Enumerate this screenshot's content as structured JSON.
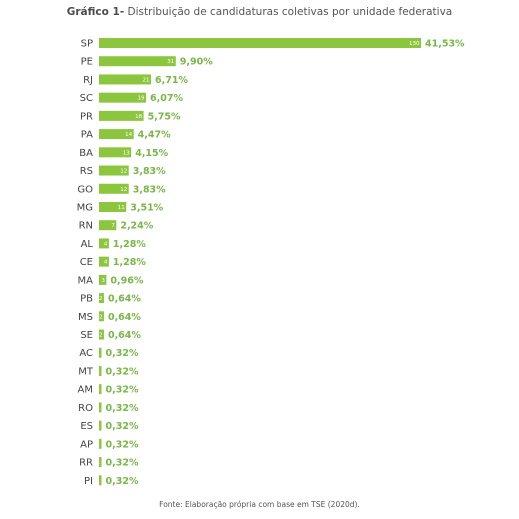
{
  "chart_data": {
    "type": "bar",
    "orientation": "horizontal",
    "title_prefix": "Gráfico 1-",
    "title": "Distribuição de candidaturas coletivas por unidade federativa",
    "source": "Fonte: Elaboração própria com base em TSE (2020d).",
    "bar_color": "#8cc63f",
    "label_color": "#7ab648",
    "categories": [
      "SP",
      "PE",
      "RJ",
      "SC",
      "PR",
      "PA",
      "BA",
      "RS",
      "GO",
      "MG",
      "RN",
      "AL",
      "CE",
      "MA",
      "PB",
      "MS",
      "SE",
      "AC",
      "MT",
      "AM",
      "RO",
      "ES",
      "AP",
      "RR",
      "PI"
    ],
    "values": [
      130,
      31,
      21,
      19,
      18,
      14,
      13,
      12,
      12,
      11,
      7,
      4,
      4,
      3,
      2,
      2,
      2,
      1,
      1,
      1,
      1,
      1,
      1,
      1,
      1
    ],
    "value_labels": [
      "130",
      "31",
      "21",
      "19",
      "18",
      "14",
      "13",
      "12",
      "12",
      "11",
      "7",
      "4",
      "4",
      "3",
      "2",
      "2",
      "2",
      "1",
      "1",
      "1",
      "1",
      "1",
      "1",
      "1",
      "1"
    ],
    "percent_labels": [
      "41,53%",
      "9,90%",
      "6,71%",
      "6,07%",
      "5,75%",
      "4,47%",
      "4,15%",
      "3,83%",
      "3,83%",
      "3,51%",
      "2,24%",
      "1,28%",
      "1,28%",
      "0,96%",
      "0,64%",
      "0,64%",
      "0,64%",
      "0,32%",
      "0,32%",
      "0,32%",
      "0,32%",
      "0,32%",
      "0,32%",
      "0,32%",
      "0,32%"
    ],
    "xlim": [
      0,
      130
    ],
    "grid": false,
    "legend": "none"
  }
}
